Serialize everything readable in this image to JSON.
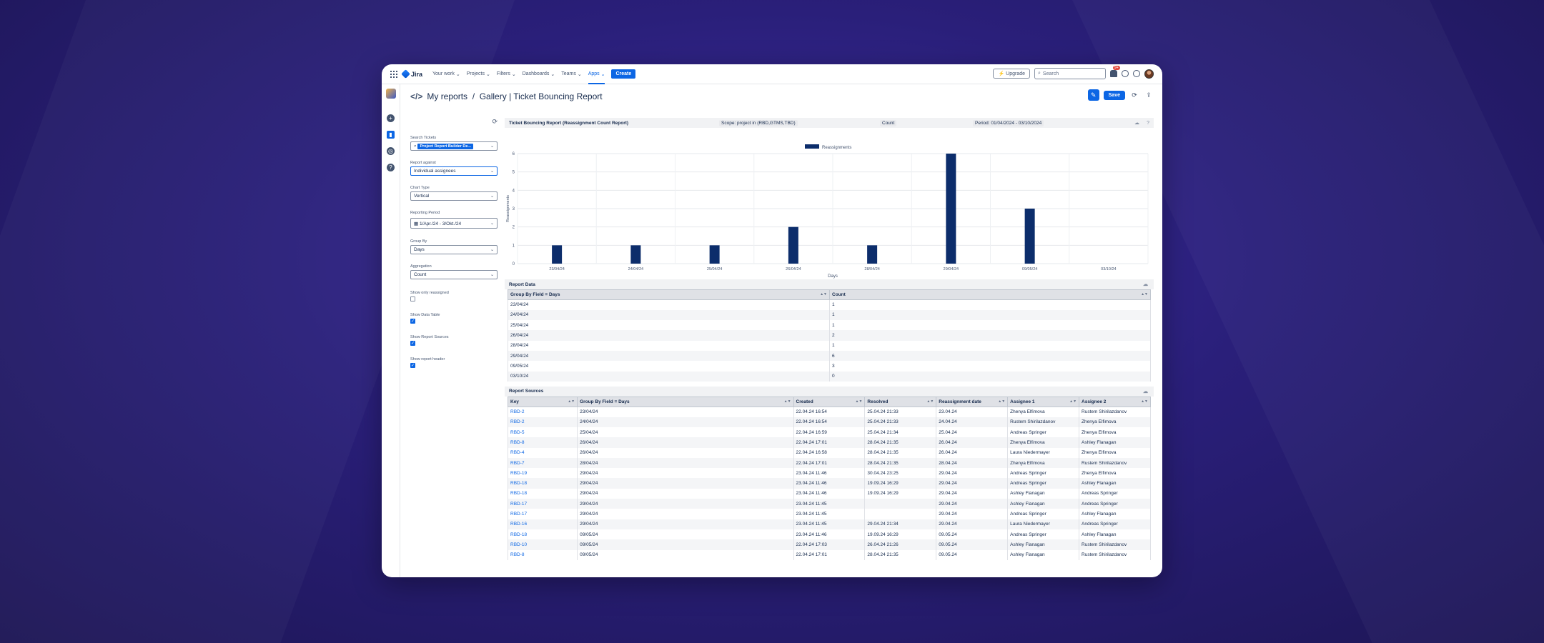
{
  "nav": {
    "app": "Jira",
    "items": [
      "Your work",
      "Projects",
      "Filters",
      "Dashboards",
      "Teams",
      "Apps"
    ],
    "create": "Create",
    "upgrade": "Upgrade",
    "search_placeholder": "Search",
    "notifications": "9+"
  },
  "header": {
    "breadcrumb": "My reports",
    "title": "Gallery | Ticket Bouncing Report",
    "save": "Save"
  },
  "form": {
    "search_label": "Search Tickets",
    "search_value": "Project Report Builder De...",
    "report_against_label": "Report against",
    "report_against": "Individual assignees",
    "chart_type_label": "Chart Type",
    "chart_type": "Vertical",
    "period_label": "Reporting Period",
    "period": "1/Apr./24 - 3/Okt./24",
    "group_by_label": "Group By",
    "group_by": "Days",
    "aggregation_label": "Aggregation",
    "aggregation": "Count",
    "only_reassigned": "Show only reassigned",
    "show_table": "Show Data Table",
    "show_sources": "Show Report Sources",
    "show_header": "Show report header"
  },
  "report_header": {
    "title": "Ticket Bouncing Report (Reassignment Count Report)",
    "scope": "Scope: project in (RBD,GTMS,TBD)",
    "count": "Count",
    "period": "Period: 01/04/2024 - 03/10/2024"
  },
  "chart_data": {
    "type": "bar",
    "categories": [
      "23/04/24",
      "24/04/24",
      "25/04/24",
      "26/04/24",
      "28/04/24",
      "29/04/24",
      "09/05/24",
      "03/10/24"
    ],
    "series": [
      {
        "name": "Reassignments",
        "values": [
          1,
          1,
          1,
          2,
          1,
          6,
          3,
          0
        ]
      }
    ],
    "xlabel": "Days",
    "ylabel": "Reassignments",
    "ylim": [
      0,
      6
    ],
    "yticks": [
      "0",
      "1",
      "2",
      "3",
      "4",
      "5",
      "6"
    ],
    "color": "#0c2d6b",
    "legend": "top-center"
  },
  "report_data": {
    "title": "Report Data",
    "headers": [
      "Group By Field = Days",
      "Count"
    ],
    "rows": [
      [
        "23/04/24",
        "1"
      ],
      [
        "24/04/24",
        "1"
      ],
      [
        "25/04/24",
        "1"
      ],
      [
        "26/04/24",
        "2"
      ],
      [
        "28/04/24",
        "1"
      ],
      [
        "29/04/24",
        "6"
      ],
      [
        "09/05/24",
        "3"
      ],
      [
        "03/10/24",
        "0"
      ]
    ]
  },
  "report_sources": {
    "title": "Report Sources",
    "headers": [
      "Key",
      "Group By Field = Days",
      "Created",
      "Resolved",
      "Reassignment date",
      "Assignee 1",
      "Assignee 2"
    ],
    "rows": [
      [
        "RBD-2",
        "23/04/24",
        "22.04.24 16:54",
        "25.04.24 21:33",
        "23.04.24",
        "Zhenya Elfimova",
        "Rustem Shirilazdanov"
      ],
      [
        "RBD-2",
        "24/04/24",
        "22.04.24 16:54",
        "25.04.24 21:33",
        "24.04.24",
        "Rustem Shirilazdanov",
        "Zhenya Elfimova"
      ],
      [
        "RBD-5",
        "25/04/24",
        "22.04.24 16:59",
        "25.04.24 21:34",
        "25.04.24",
        "Andreas Springer",
        "Zhenya Elfimova"
      ],
      [
        "RBD-8",
        "26/04/24",
        "22.04.24 17:01",
        "28.04.24 21:35",
        "26.04.24",
        "Zhenya Elfimova",
        "Ashley Flanagan"
      ],
      [
        "RBD-4",
        "26/04/24",
        "22.04.24 16:58",
        "28.04.24 21:35",
        "26.04.24",
        "Laura Niedermayer",
        "Zhenya Elfimova"
      ],
      [
        "RBD-7",
        "28/04/24",
        "22.04.24 17:01",
        "28.04.24 21:35",
        "28.04.24",
        "Zhenya Elfimova",
        "Rustem Shirilazdanov"
      ],
      [
        "RBD-19",
        "29/04/24",
        "23.04.24 11:46",
        "30.04.24 23:25",
        "29.04.24",
        "Andreas Springer",
        "Zhenya Elfimova"
      ],
      [
        "RBD-18",
        "29/04/24",
        "23.04.24 11:46",
        "19.09.24 16:29",
        "29.04.24",
        "Andreas Springer",
        "Ashley Flanagan"
      ],
      [
        "RBD-18",
        "29/04/24",
        "23.04.24 11:46",
        "19.09.24 16:29",
        "29.04.24",
        "Ashley Flanagan",
        "Andreas Springer"
      ],
      [
        "RBD-17",
        "29/04/24",
        "23.04.24 11:45",
        "",
        "29.04.24",
        "Ashley Flanagan",
        "Andreas Springer"
      ],
      [
        "RBD-17",
        "29/04/24",
        "23.04.24 11:45",
        "",
        "29.04.24",
        "Andreas Springer",
        "Ashley Flanagan"
      ],
      [
        "RBD-16",
        "29/04/24",
        "23.04.24 11:45",
        "29.04.24 21:34",
        "29.04.24",
        "Laura Niedermayer",
        "Andreas Springer"
      ],
      [
        "RBD-18",
        "09/05/24",
        "23.04.24 11:46",
        "19.09.24 16:29",
        "09.05.24",
        "Andreas Springer",
        "Ashley Flanagan"
      ],
      [
        "RBD-10",
        "09/05/24",
        "22.04.24 17:03",
        "26.04.24 21:26",
        "09.05.24",
        "Ashley Flanagan",
        "Rustem Shirilazdanov"
      ],
      [
        "RBD-8",
        "09/05/24",
        "22.04.24 17:01",
        "28.04.24 21:35",
        "09.05.24",
        "Ashley Flanagan",
        "Rustem Shirilazdanov"
      ]
    ]
  }
}
